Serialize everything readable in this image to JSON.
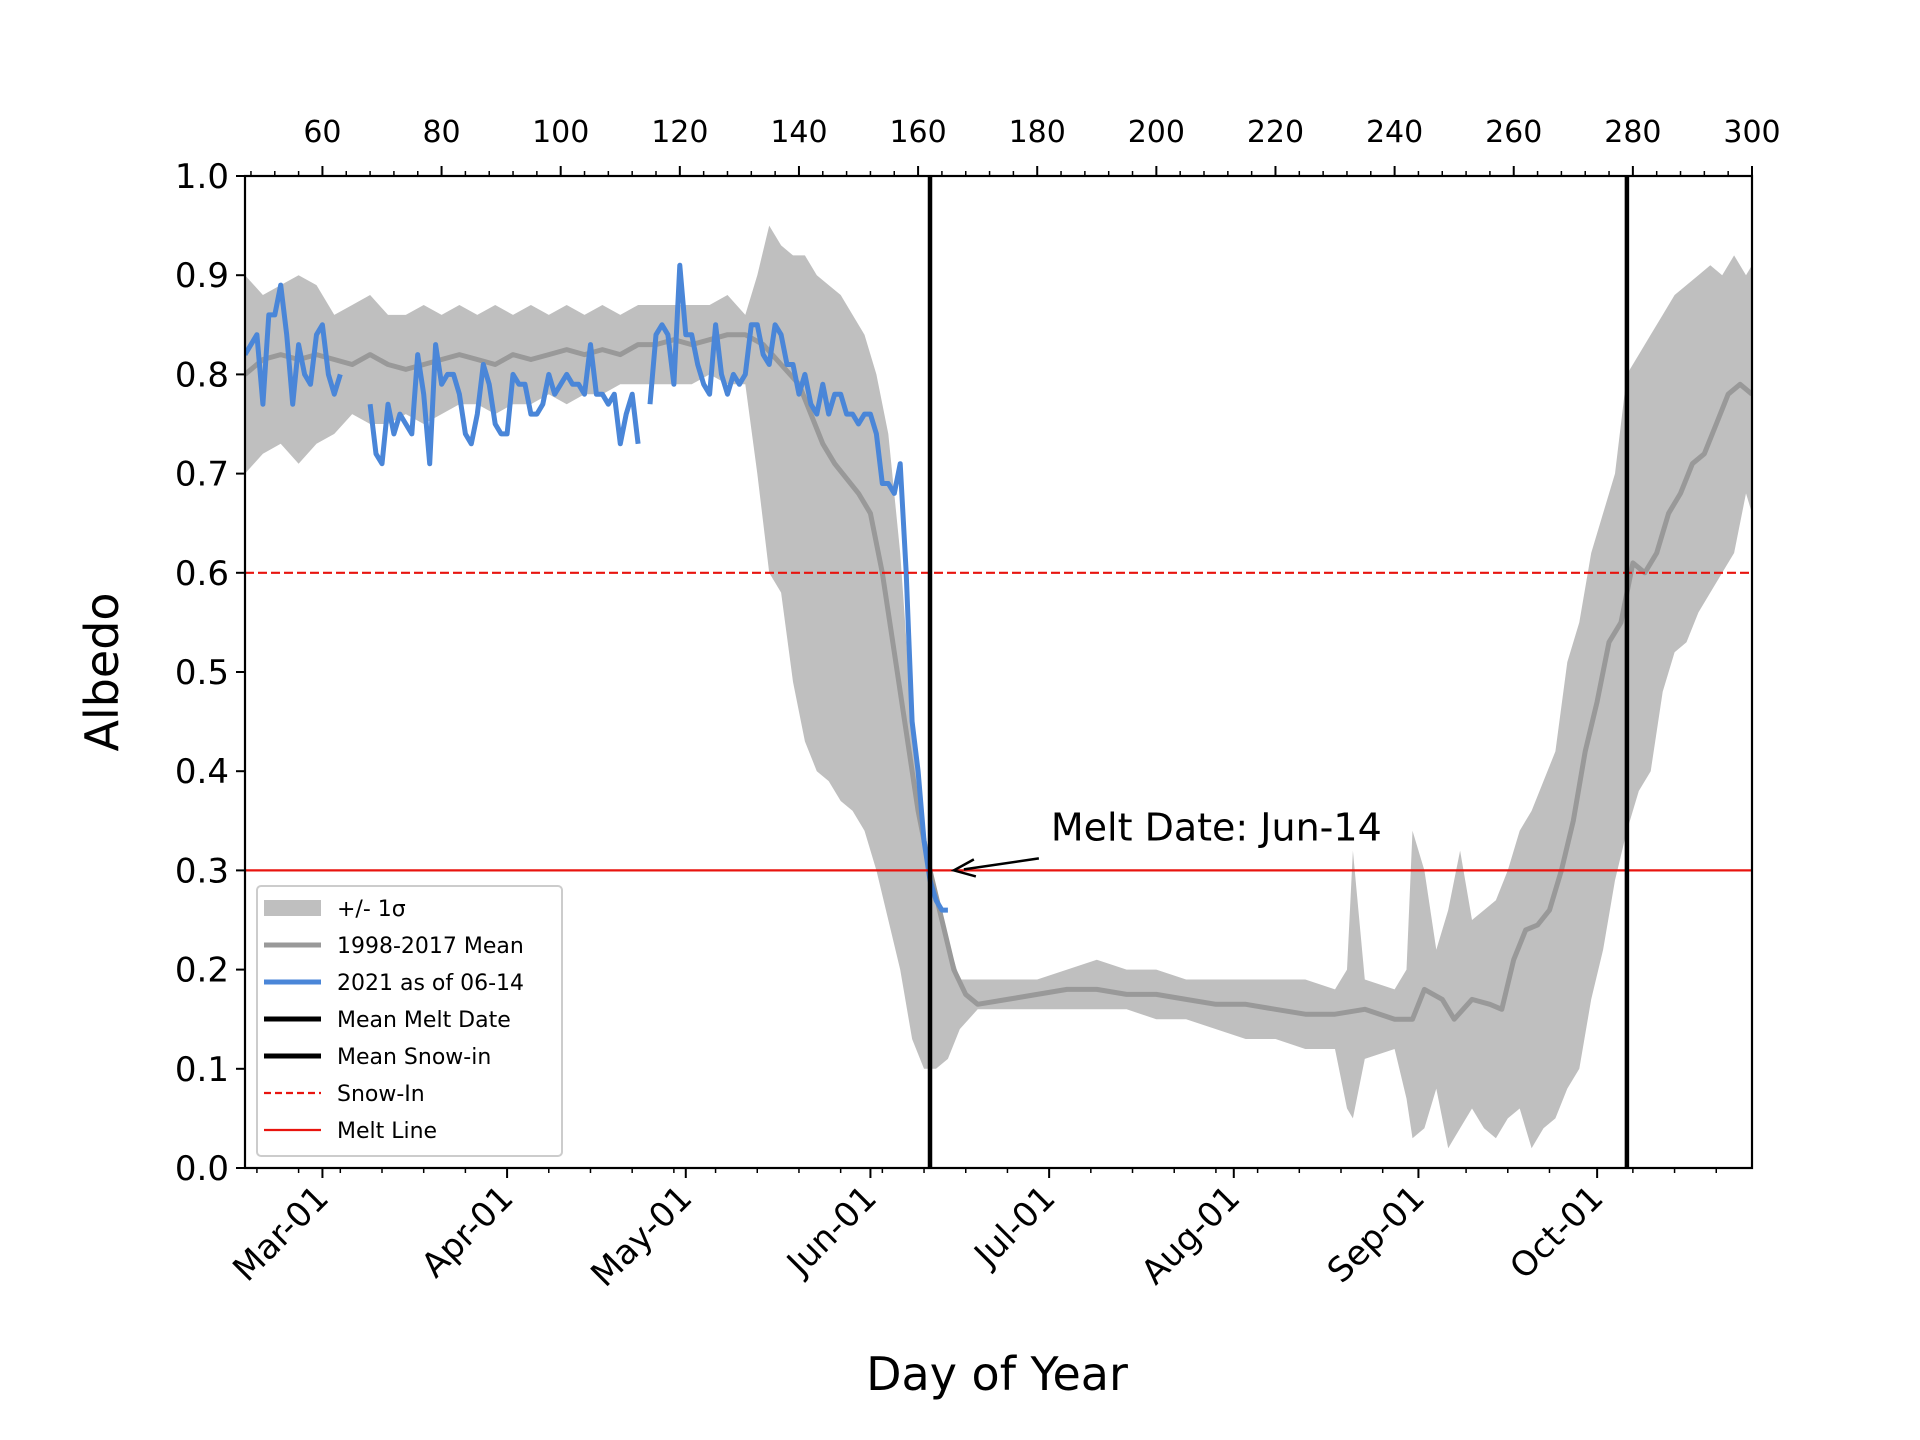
{
  "chart_data": {
    "type": "line",
    "title": "",
    "xlabel": "Day of Year",
    "ylabel": "Albedo",
    "xlim": [
      47,
      300
    ],
    "ylim": [
      0.0,
      1.0
    ],
    "y_ticks": [
      "0.0",
      "0.1",
      "0.2",
      "0.3",
      "0.4",
      "0.5",
      "0.6",
      "0.7",
      "0.8",
      "0.9",
      "1.0"
    ],
    "x_top_ticks": [
      "60",
      "80",
      "100",
      "120",
      "140",
      "160",
      "180",
      "200",
      "220",
      "240",
      "260",
      "280",
      "300"
    ],
    "month_ticks": [
      {
        "label": "Mar-01",
        "day": 60
      },
      {
        "label": "Apr-01",
        "day": 91
      },
      {
        "label": "May-01",
        "day": 121
      },
      {
        "label": "Jun-01",
        "day": 152
      },
      {
        "label": "Jul-01",
        "day": 182
      },
      {
        "label": "Aug-01",
        "day": 213
      },
      {
        "label": "Sep-01",
        "day": 244
      },
      {
        "label": "Oct-01",
        "day": 274
      }
    ],
    "grid": false,
    "legend_position": "lower-left",
    "legend": [
      {
        "label": "+/- 1σ",
        "kind": "patch",
        "color": "#bfbfbf"
      },
      {
        "label": "1998-2017 Mean",
        "kind": "line",
        "color": "#999999"
      },
      {
        "label": "2021 as of 06-14",
        "kind": "line",
        "color": "#4a86d8"
      },
      {
        "label": "Mean Melt Date",
        "kind": "line",
        "color": "#000000"
      },
      {
        "label": "Mean Snow-in",
        "kind": "line",
        "color": "#000000"
      },
      {
        "label": "Snow-In",
        "kind": "dashed",
        "color": "#e8140f"
      },
      {
        "label": "Melt Line",
        "kind": "line",
        "color": "#e8140f"
      }
    ],
    "hlines": [
      {
        "name": "Snow-In",
        "y": 0.6,
        "style": "dashed",
        "color": "#e8140f"
      },
      {
        "name": "Melt Line",
        "y": 0.3,
        "style": "solid",
        "color": "#e8140f"
      }
    ],
    "vlines": [
      {
        "name": "Mean Melt Date",
        "x": 162,
        "color": "#000000"
      },
      {
        "name": "Mean Snow-in",
        "x": 279,
        "color": "#000000"
      }
    ],
    "annotation": {
      "text": "Melt Date: Jun-14",
      "point_x": 165,
      "point_y": 0.3
    },
    "series": [
      {
        "name": "1998-2017 Mean",
        "color": "#999999",
        "x": [
          47,
          50,
          53,
          56,
          59,
          62,
          65,
          68,
          71,
          74,
          77,
          80,
          83,
          86,
          89,
          92,
          95,
          98,
          101,
          104,
          107,
          110,
          113,
          116,
          119,
          122,
          125,
          128,
          131,
          134,
          137,
          140,
          142,
          144,
          146,
          148,
          150,
          152,
          154,
          156,
          158,
          160,
          162,
          164,
          166,
          168,
          170,
          175,
          180,
          185,
          190,
          195,
          200,
          205,
          210,
          215,
          220,
          225,
          230,
          235,
          240,
          243,
          245,
          248,
          250,
          253,
          256,
          258,
          260,
          262,
          264,
          266,
          268,
          270,
          272,
          274,
          276,
          278,
          280,
          282,
          284,
          286,
          288,
          290,
          292,
          294,
          296,
          298,
          300
        ],
        "y": [
          0.8,
          0.815,
          0.82,
          0.815,
          0.82,
          0.815,
          0.81,
          0.82,
          0.81,
          0.805,
          0.81,
          0.815,
          0.82,
          0.815,
          0.81,
          0.82,
          0.815,
          0.82,
          0.825,
          0.82,
          0.825,
          0.82,
          0.83,
          0.83,
          0.835,
          0.83,
          0.835,
          0.84,
          0.84,
          0.83,
          0.81,
          0.79,
          0.76,
          0.73,
          0.71,
          0.695,
          0.68,
          0.66,
          0.6,
          0.52,
          0.44,
          0.36,
          0.3,
          0.25,
          0.2,
          0.175,
          0.165,
          0.17,
          0.175,
          0.18,
          0.18,
          0.175,
          0.175,
          0.17,
          0.165,
          0.165,
          0.16,
          0.155,
          0.155,
          0.16,
          0.15,
          0.15,
          0.18,
          0.17,
          0.15,
          0.17,
          0.165,
          0.16,
          0.21,
          0.24,
          0.245,
          0.26,
          0.3,
          0.35,
          0.42,
          0.47,
          0.53,
          0.55,
          0.61,
          0.6,
          0.62,
          0.66,
          0.68,
          0.71,
          0.72,
          0.75,
          0.78,
          0.79,
          0.78
        ]
      },
      {
        "name": "2021 as of 06-14",
        "color": "#4a86d8",
        "segments": [
          {
            "x": [
              47,
              49,
              50,
              51,
              52,
              53,
              54,
              55,
              56,
              57,
              58,
              59,
              60,
              61,
              62,
              63
            ],
            "y": [
              0.82,
              0.84,
              0.77,
              0.86,
              0.86,
              0.89,
              0.84,
              0.77,
              0.83,
              0.8,
              0.79,
              0.84,
              0.85,
              0.8,
              0.78,
              0.8
            ]
          },
          {
            "x": [
              68,
              69,
              70,
              71,
              72,
              73,
              74,
              75,
              76,
              77,
              78,
              79,
              80,
              81,
              82,
              83,
              84,
              85,
              86,
              87,
              88,
              89,
              90,
              91,
              92,
              93,
              94,
              95,
              96,
              97,
              98,
              99,
              100,
              101,
              102,
              103,
              104,
              105,
              106,
              107,
              108,
              109,
              110,
              111,
              112,
              113
            ],
            "y": [
              0.77,
              0.72,
              0.71,
              0.77,
              0.74,
              0.76,
              0.75,
              0.74,
              0.82,
              0.78,
              0.71,
              0.83,
              0.79,
              0.8,
              0.8,
              0.78,
              0.74,
              0.73,
              0.76,
              0.81,
              0.79,
              0.75,
              0.74,
              0.74,
              0.8,
              0.79,
              0.79,
              0.76,
              0.76,
              0.77,
              0.8,
              0.78,
              0.79,
              0.8,
              0.79,
              0.79,
              0.78,
              0.83,
              0.78,
              0.78,
              0.77,
              0.78,
              0.73,
              0.76,
              0.78,
              0.73
            ]
          },
          {
            "x": [
              115,
              116,
              117,
              118,
              119,
              120,
              121,
              122,
              123,
              124,
              125,
              126,
              127,
              128,
              129,
              130,
              131,
              132,
              133,
              134,
              135,
              136,
              137,
              138,
              139,
              140,
              141,
              142,
              143,
              144,
              145,
              146,
              147,
              148,
              149,
              150,
              151,
              152,
              153,
              154,
              155,
              156,
              157,
              158,
              159,
              160,
              161,
              162,
              163,
              164,
              165
            ],
            "y": [
              0.77,
              0.84,
              0.85,
              0.84,
              0.79,
              0.91,
              0.84,
              0.84,
              0.81,
              0.79,
              0.78,
              0.85,
              0.8,
              0.78,
              0.8,
              0.79,
              0.8,
              0.85,
              0.85,
              0.82,
              0.81,
              0.85,
              0.84,
              0.81,
              0.81,
              0.78,
              0.8,
              0.77,
              0.76,
              0.79,
              0.76,
              0.78,
              0.78,
              0.76,
              0.76,
              0.75,
              0.76,
              0.76,
              0.74,
              0.69,
              0.69,
              0.68,
              0.71,
              0.6,
              0.45,
              0.4,
              0.33,
              0.29,
              0.27,
              0.26,
              0.26
            ]
          }
        ]
      }
    ],
    "band": {
      "name": "+/- 1σ",
      "color": "#bfbfbf",
      "x": [
        47,
        50,
        53,
        56,
        59,
        62,
        65,
        68,
        71,
        74,
        77,
        80,
        83,
        86,
        89,
        92,
        95,
        98,
        101,
        104,
        107,
        110,
        113,
        116,
        119,
        122,
        125,
        128,
        131,
        133,
        135,
        137,
        139,
        141,
        143,
        145,
        147,
        149,
        151,
        153,
        155,
        157,
        159,
        161,
        163,
        165,
        167,
        170,
        175,
        180,
        185,
        190,
        195,
        200,
        205,
        210,
        215,
        220,
        225,
        230,
        232,
        233,
        235,
        240,
        242,
        243,
        245,
        247,
        249,
        251,
        253,
        255,
        257,
        259,
        261,
        263,
        265,
        267,
        269,
        271,
        273,
        275,
        277,
        279,
        281,
        283,
        285,
        287,
        289,
        291,
        293,
        295,
        297,
        299,
        300
      ],
      "upper": [
        0.9,
        0.88,
        0.89,
        0.9,
        0.89,
        0.86,
        0.87,
        0.88,
        0.86,
        0.86,
        0.87,
        0.86,
        0.87,
        0.86,
        0.87,
        0.86,
        0.87,
        0.86,
        0.87,
        0.86,
        0.87,
        0.86,
        0.87,
        0.87,
        0.87,
        0.87,
        0.87,
        0.88,
        0.86,
        0.9,
        0.95,
        0.93,
        0.92,
        0.92,
        0.9,
        0.89,
        0.88,
        0.86,
        0.84,
        0.8,
        0.74,
        0.62,
        0.45,
        0.34,
        0.28,
        0.23,
        0.19,
        0.19,
        0.19,
        0.19,
        0.2,
        0.21,
        0.2,
        0.2,
        0.19,
        0.19,
        0.19,
        0.19,
        0.19,
        0.18,
        0.2,
        0.32,
        0.19,
        0.18,
        0.2,
        0.34,
        0.3,
        0.22,
        0.26,
        0.32,
        0.25,
        0.26,
        0.27,
        0.3,
        0.34,
        0.36,
        0.39,
        0.42,
        0.51,
        0.55,
        0.62,
        0.66,
        0.7,
        0.8,
        0.82,
        0.84,
        0.86,
        0.88,
        0.89,
        0.9,
        0.91,
        0.9,
        0.92,
        0.9,
        0.91
      ],
      "lower": [
        0.7,
        0.72,
        0.73,
        0.71,
        0.73,
        0.74,
        0.76,
        0.75,
        0.75,
        0.76,
        0.75,
        0.76,
        0.77,
        0.77,
        0.76,
        0.77,
        0.77,
        0.78,
        0.77,
        0.78,
        0.78,
        0.79,
        0.79,
        0.79,
        0.79,
        0.79,
        0.8,
        0.79,
        0.79,
        0.7,
        0.6,
        0.58,
        0.49,
        0.43,
        0.4,
        0.39,
        0.37,
        0.36,
        0.34,
        0.3,
        0.25,
        0.2,
        0.13,
        0.1,
        0.1,
        0.11,
        0.14,
        0.16,
        0.16,
        0.16,
        0.16,
        0.16,
        0.16,
        0.15,
        0.15,
        0.14,
        0.13,
        0.13,
        0.12,
        0.12,
        0.06,
        0.05,
        0.11,
        0.12,
        0.07,
        0.03,
        0.04,
        0.08,
        0.02,
        0.04,
        0.06,
        0.04,
        0.03,
        0.05,
        0.06,
        0.02,
        0.04,
        0.05,
        0.08,
        0.1,
        0.17,
        0.22,
        0.29,
        0.34,
        0.38,
        0.4,
        0.48,
        0.52,
        0.53,
        0.56,
        0.58,
        0.6,
        0.62,
        0.68,
        0.66
      ]
    }
  }
}
